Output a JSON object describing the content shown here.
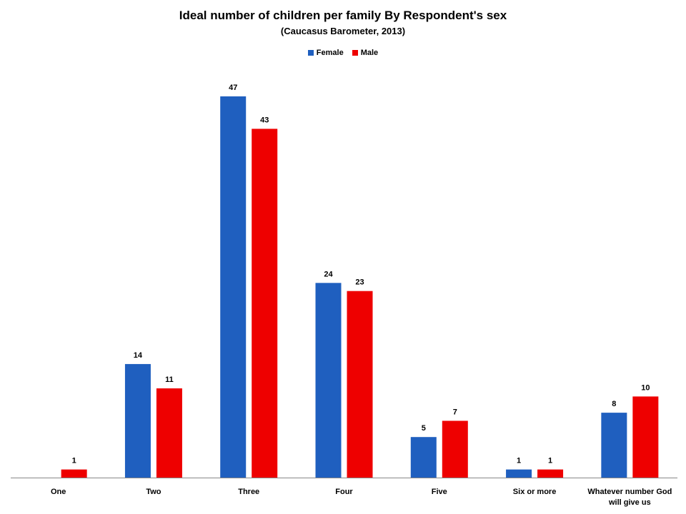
{
  "chart_data": {
    "type": "bar",
    "title": "Ideal number of children per family By Respondent's sex",
    "subtitle": "(Caucasus Barometer, 2013)",
    "categories": [
      "One",
      "Two",
      "Three",
      "Four",
      "Five",
      "Six or more",
      "Whatever number  God will give us"
    ],
    "category_lines": [
      [
        "One"
      ],
      [
        "Two"
      ],
      [
        "Three"
      ],
      [
        "Four"
      ],
      [
        "Five"
      ],
      [
        "Six or more"
      ],
      [
        "Whatever number  God",
        "will give us"
      ]
    ],
    "series": [
      {
        "name": "Female",
        "color": "#1f5fbf",
        "values": [
          null,
          14,
          47,
          24,
          5,
          1,
          8
        ]
      },
      {
        "name": "Male",
        "color": "#ee0000",
        "values": [
          1,
          11,
          43,
          23,
          7,
          1,
          10
        ]
      }
    ],
    "ylim": [
      0,
      47
    ],
    "grid": false,
    "legend_position": "top-center"
  }
}
